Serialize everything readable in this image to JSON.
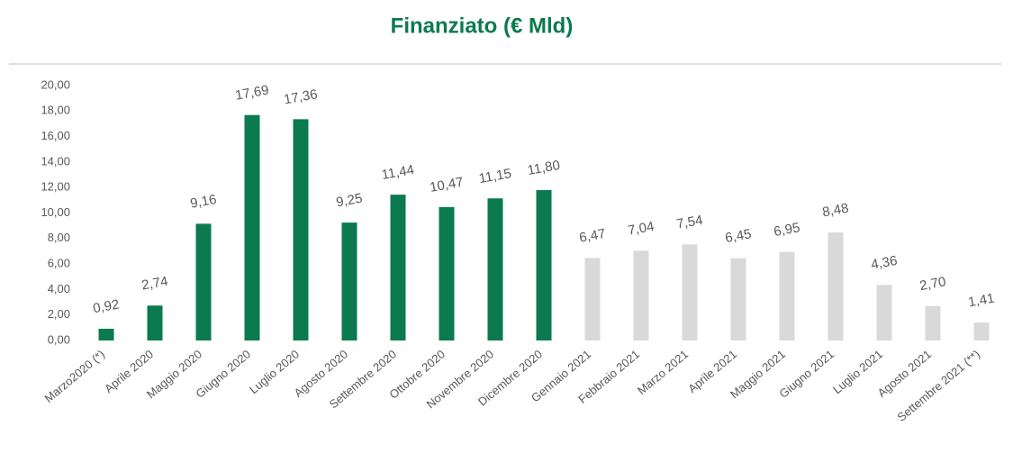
{
  "chart_data": {
    "type": "bar",
    "title": "Finanziato (€ Mld)",
    "categories": [
      "Marzo2020 (*)",
      "Aprile 2020",
      "Maggio 2020",
      "Giugno 2020",
      "Luglio 2020",
      "Agosto 2020",
      "Settembre 2020",
      "Ottobre 2020",
      "Novembre 2020",
      "Dicembre 2020",
      "Gennaio 2021",
      "Febbraio 2021",
      "Marzo 2021",
      "Aprile 2021",
      "Maggio 2021",
      "Giugno 2021",
      "Luglio 2021",
      "Agosto 2021",
      "Settembre 2021 (**)"
    ],
    "values": [
      0.92,
      2.74,
      9.16,
      17.69,
      17.36,
      9.25,
      11.44,
      10.47,
      11.15,
      11.8,
      6.47,
      7.04,
      7.54,
      6.45,
      6.95,
      8.48,
      4.36,
      2.7,
      1.41
    ],
    "value_labels": [
      "0,92",
      "2,74",
      "9,16",
      "17,69",
      "17,36",
      "9,25",
      "11,44",
      "10,47",
      "11,15",
      "11,80",
      "6,47",
      "7,04",
      "7,54",
      "6,45",
      "6,95",
      "8,48",
      "4,36",
      "2,70",
      "1,41"
    ],
    "colors": [
      "#0b7a4e",
      "#0b7a4e",
      "#0b7a4e",
      "#0b7a4e",
      "#0b7a4e",
      "#0b7a4e",
      "#0b7a4e",
      "#0b7a4e",
      "#0b7a4e",
      "#0b7a4e",
      "#d9d9d9",
      "#d9d9d9",
      "#d9d9d9",
      "#d9d9d9",
      "#d9d9d9",
      "#d9d9d9",
      "#d9d9d9",
      "#d9d9d9",
      "#d9d9d9"
    ],
    "ylim": [
      0,
      20
    ],
    "yticks": [
      {
        "value": 0,
        "label": "0,00"
      },
      {
        "value": 2,
        "label": "2,00"
      },
      {
        "value": 4,
        "label": "4,00"
      },
      {
        "value": 6,
        "label": "6,00"
      },
      {
        "value": 8,
        "label": "8,00"
      },
      {
        "value": 10,
        "label": "10,00"
      },
      {
        "value": 12,
        "label": "12,00"
      },
      {
        "value": 14,
        "label": "14,00"
      },
      {
        "value": 16,
        "label": "16,00"
      },
      {
        "value": 18,
        "label": "18,00"
      },
      {
        "value": 20,
        "label": "20,00"
      }
    ],
    "grid": false
  }
}
